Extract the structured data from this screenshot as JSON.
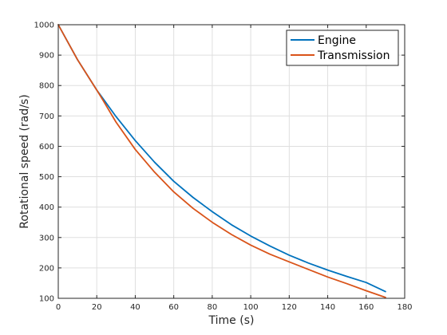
{
  "chart_data": {
    "type": "line",
    "xlabel": "Time (s)",
    "ylabel": "Rotational speed (rad/s)",
    "xlim": [
      0,
      180
    ],
    "ylim": [
      100,
      1000
    ],
    "xticks": [
      0,
      20,
      40,
      60,
      80,
      100,
      120,
      140,
      160,
      180
    ],
    "yticks": [
      100,
      200,
      300,
      400,
      500,
      600,
      700,
      800,
      900,
      1000
    ],
    "grid": true,
    "legend_position": "top-right",
    "series": [
      {
        "name": "Engine",
        "color": "#0072bd",
        "x": [
          0,
          10,
          20,
          22,
          30,
          40,
          50,
          60,
          70,
          80,
          90,
          100,
          110,
          120,
          130,
          140,
          150,
          160,
          170
        ],
        "y": [
          1000,
          885,
          785,
          768,
          698,
          619,
          548,
          485,
          432,
          385,
          342,
          305,
          272,
          242,
          216,
          193,
          172,
          152,
          122
        ]
      },
      {
        "name": "Transmission",
        "color": "#d95319",
        "x": [
          0,
          10,
          20,
          22,
          30,
          40,
          50,
          60,
          70,
          80,
          90,
          100,
          110,
          120,
          130,
          140,
          150,
          160,
          170
        ],
        "y": [
          1000,
          885,
          785,
          765,
          680,
          590,
          515,
          450,
          396,
          350,
          310,
          275,
          245,
          220,
          195,
          170,
          148,
          125,
          103
        ]
      }
    ]
  }
}
